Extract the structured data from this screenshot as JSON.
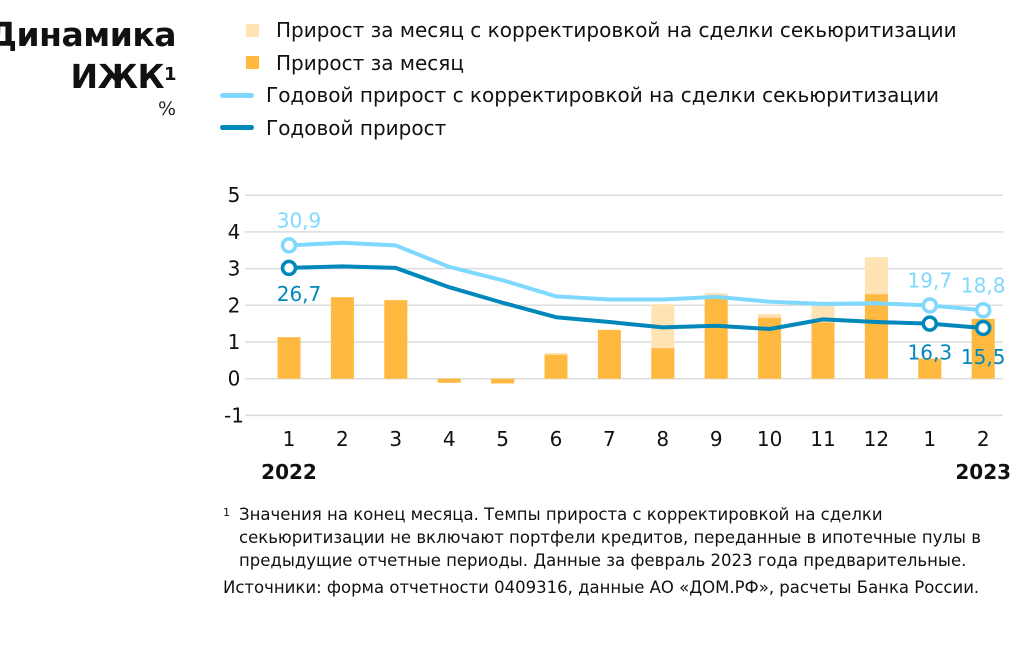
{
  "title": {
    "line1": "Динамика",
    "line2": "ИЖК",
    "sup": "1",
    "unit": "%"
  },
  "legend": [
    {
      "label": "Прирост за месяц с корректировкой на сделки секьюритизации",
      "kind": "bar",
      "color": "#FFE3B3"
    },
    {
      "label": "Прирост за месяц",
      "kind": "bar",
      "color": "#FFB840"
    },
    {
      "label": "Годовой прирост с корректировкой на сделки секьюритизации",
      "kind": "line",
      "color": "#7FD9FF"
    },
    {
      "label": "Годовой прирост",
      "kind": "line",
      "color": "#0088BB"
    }
  ],
  "chart_data": {
    "type": "bar+line",
    "categories": [
      "1",
      "2",
      "3",
      "4",
      "5",
      "6",
      "7",
      "8",
      "9",
      "10",
      "11",
      "12",
      "1",
      "2"
    ],
    "year_labels": [
      {
        "text": "2022",
        "at": 0
      },
      {
        "text": "2023",
        "at": 13
      }
    ],
    "ylim": [
      -1,
      5
    ],
    "yticks": [
      "-1",
      "0",
      "1",
      "2",
      "3",
      "4",
      "5"
    ],
    "grid": true,
    "legend_position": "top",
    "bar_series": [
      {
        "name": "Прирост за месяц с корректировкой на сделки секьюритизации",
        "color": "#FFE3B3",
        "values": [
          1.13,
          2.22,
          2.14,
          -0.11,
          -0.13,
          0.7,
          1.33,
          2.03,
          2.33,
          1.76,
          1.98,
          3.31,
          0.55,
          1.63
        ]
      },
      {
        "name": "Прирост за месяц",
        "color": "#FFB840",
        "values": [
          1.13,
          2.22,
          2.14,
          -0.11,
          -0.13,
          0.65,
          1.33,
          0.83,
          2.25,
          1.66,
          1.53,
          2.3,
          0.55,
          1.63
        ]
      }
    ],
    "line_series": [
      {
        "name": "Годовой прирост с корректировкой на сделки секьюритизации",
        "color": "#7FD9FF",
        "values": [
          30.9,
          31.4,
          30.9,
          26.9,
          24.4,
          21.4,
          20.8,
          20.8,
          21.3,
          20.4,
          20.0,
          20.1,
          19.7,
          18.8
        ],
        "labels": [
          {
            "index": 0,
            "text": "30,9"
          },
          {
            "index": 12,
            "text": "19,7"
          },
          {
            "index": 13,
            "text": "18,8"
          }
        ]
      },
      {
        "name": "Годовой прирост",
        "color": "#0088BB",
        "values": [
          26.7,
          27.0,
          26.7,
          23.1,
          20.2,
          17.5,
          16.6,
          15.6,
          15.9,
          15.3,
          17.1,
          16.6,
          16.3,
          15.5
        ],
        "labels": [
          {
            "index": 0,
            "text": "26,7"
          },
          {
            "index": 12,
            "text": "16,3"
          },
          {
            "index": 13,
            "text": "15,5"
          }
        ]
      }
    ]
  },
  "footnote": {
    "mark": "1",
    "text": "Значения на конец месяца. Темпы прироста с корректировкой на сделки секьюритизации не включают портфели кредитов, переданные в ипотечные пулы в предыдущие отчетные периоды. Данные за февраль 2023 года предварительные."
  },
  "sources": "Источники: форма отчетности 0409316, данные АО «ДОМ.РФ», расчеты Банка России."
}
